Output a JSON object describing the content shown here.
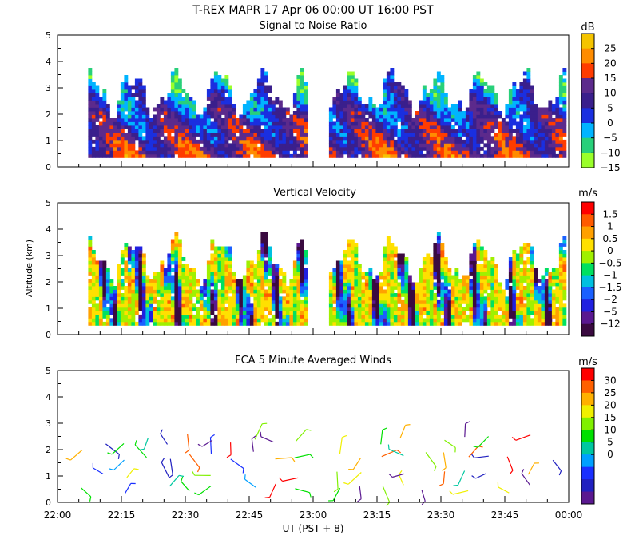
{
  "figure_title": "T-REX   MAPR 17 Apr 06   00:00 UT   16:00   PST",
  "y_axis_label": "Altitude (km)",
  "x_axis_label": "UT  (PST + 8)",
  "chart_data": [
    {
      "type": "heatmap",
      "title": "Signal to Noise Ratio",
      "unit": "dB",
      "ylim": [
        0,
        5
      ],
      "yticks": [
        "0",
        "1",
        "2",
        "3",
        "4",
        "5"
      ],
      "xlim_hours": [
        22.0,
        24.0
      ],
      "xtick_labels": [
        "22:00",
        "22:15",
        "22:30",
        "22:45",
        "23:00",
        "23:15",
        "23:30",
        "23:45",
        "00:00"
      ],
      "colorbar_labels": [
        "25",
        "20",
        "15",
        "10",
        "5",
        "0",
        "−5",
        "−10",
        "−15"
      ],
      "colors": [
        "#f5c400",
        "#ff8c00",
        "#ff3c00",
        "#5c2a8c",
        "#3a1f8c",
        "#1a2fe0",
        "#00b4ff",
        "#28d07a",
        "#9aff2a"
      ],
      "data_gap_hours": [
        22.97,
        23.05
      ]
    },
    {
      "type": "heatmap",
      "title": "Vertical Velocity",
      "unit": "m/s",
      "ylim": [
        0,
        5
      ],
      "yticks": [
        "0",
        "1",
        "2",
        "3",
        "4",
        "5"
      ],
      "colorbar_labels": [
        "1.5",
        "1",
        "0.5",
        "0",
        "−0.5",
        "−1",
        "−1.5",
        "−2",
        "−5",
        "−12"
      ],
      "colors": [
        "#ff0000",
        "#ff5a00",
        "#ffa000",
        "#ffe000",
        "#a0f000",
        "#00e060",
        "#00c0e0",
        "#1a60ff",
        "#2020e0",
        "#5a1890",
        "#3a0a40"
      ],
      "data_gap_hours": [
        22.97,
        23.05
      ]
    },
    {
      "type": "scatter",
      "title": "FCA 5 Minute Averaged Winds",
      "unit": "m/s",
      "ylim": [
        0,
        5
      ],
      "yticks": [
        "0",
        "1",
        "2",
        "3",
        "4",
        "5"
      ],
      "colorbar_labels": [
        "30",
        "25",
        "20",
        "15",
        "10",
        "5",
        "0"
      ],
      "colors": [
        "#ff0000",
        "#ff6000",
        "#ffb000",
        "#f0f000",
        "#80f000",
        "#00e000",
        "#00c8a0",
        "#00a0ff",
        "#1a30ff",
        "#2020c0",
        "#5a1890"
      ]
    }
  ]
}
